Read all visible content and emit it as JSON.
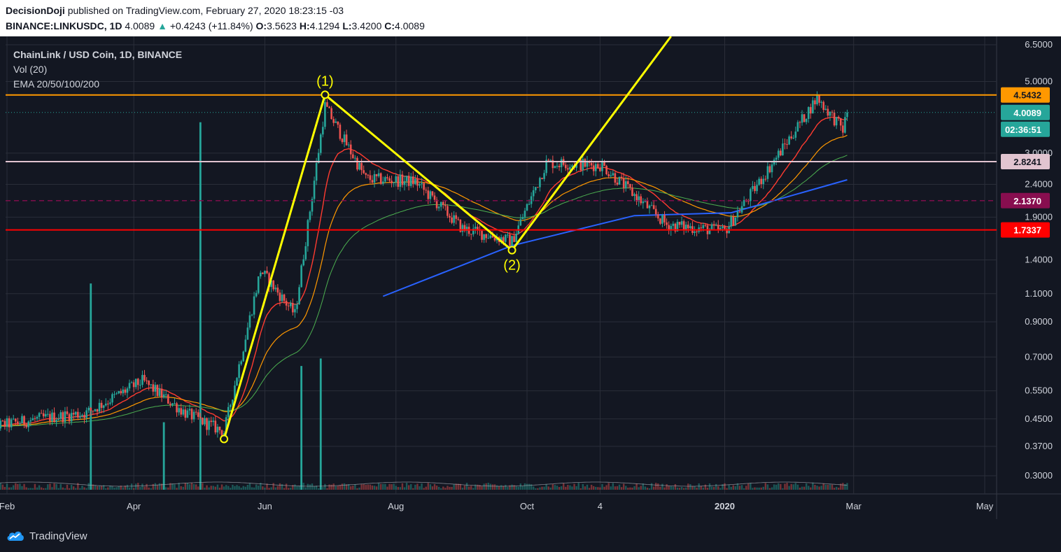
{
  "header": {
    "author": "DecisionDoji",
    "published_text": "published on TradingView.com, February 27, 2020 18:23:15 -03",
    "symbol": "BINANCE:LINKUSDC, 1D",
    "last": "4.0089",
    "change": "+0.4243 (+11.84%)",
    "o_label": "O:",
    "o_value": "3.5623",
    "h_label": "H:",
    "h_value": "4.1294",
    "l_label": "L:",
    "l_value": "3.4200",
    "c_label": "C:",
    "c_value": "4.0089"
  },
  "legend": {
    "title": "ChainLink / USD Coin, 1D, BINANCE",
    "vol": "Vol (20)",
    "ema": "EMA 20/50/100/200"
  },
  "footer": {
    "brand": "TradingView"
  },
  "colors": {
    "background": "#131722",
    "up": "#26a69a",
    "down": "#ef5350",
    "orange_line": "#ff9800",
    "red_line": "#ff0000",
    "pink_line": "#e1c4d0",
    "purple_dash": "#880e4f",
    "wave": "#ffff00",
    "ema20": "#ff3b30",
    "ema50": "#ff9800",
    "ema100": "#4caf50",
    "ema200": "#2962ff"
  },
  "chart_data": {
    "type": "candlestick",
    "scale": "log",
    "y_ticks": [
      "6.5000",
      "5.0000",
      "3.0000",
      "2.4000",
      "1.9000",
      "1.4000",
      "1.1000",
      "0.9000",
      "0.7000",
      "0.5500",
      "0.4500",
      "0.3700",
      "0.3000"
    ],
    "x_ticks": [
      "Feb",
      "Apr",
      "Jun",
      "Aug",
      "Oct",
      "4",
      "2020",
      "Mar",
      "May"
    ],
    "price_labels": [
      {
        "text": "4.5432",
        "value": 4.5432,
        "bg": "#ff9800",
        "fg": "#131722"
      },
      {
        "text": "4.0089",
        "value": 4.0089,
        "bg": "#26a69a",
        "fg": "#ffffff"
      },
      {
        "text": "02:36:51",
        "value": null,
        "bg": "#26a69a",
        "fg": "#ffffff"
      },
      {
        "text": "2.8241",
        "value": 2.8241,
        "bg": "#e1c4d0",
        "fg": "#131722"
      },
      {
        "text": "2.1370",
        "value": 2.137,
        "bg": "#880e4f",
        "fg": "#ffffff"
      },
      {
        "text": "1.7337",
        "value": 1.7337,
        "bg": "#ff0000",
        "fg": "#ffffff"
      }
    ],
    "horizontal_lines": [
      {
        "value": 4.5432,
        "color": "#ff9800",
        "style": "solid"
      },
      {
        "value": 2.8241,
        "color": "#e1c4d0",
        "style": "solid"
      },
      {
        "value": 2.137,
        "color": "#880e4f",
        "style": "dashed"
      },
      {
        "value": 1.7337,
        "color": "#ff0000",
        "style": "solid"
      },
      {
        "value": 4.0089,
        "color": "#26a69a",
        "style": "dotted"
      }
    ],
    "wave_points": [
      {
        "date": "2019-05-13",
        "price": 0.39
      },
      {
        "date": "2019-06-29",
        "price": 4.55,
        "label": "(1)"
      },
      {
        "date": "2019-09-24",
        "price": 1.5,
        "label": "(2)"
      },
      {
        "date": "2019-12-07",
        "price": 6.9
      }
    ],
    "ohlc_keypoints": [
      {
        "date": "2019-01-20",
        "price": 0.42
      },
      {
        "date": "2019-02-15",
        "price": 0.45
      },
      {
        "date": "2019-03-10",
        "price": 0.47
      },
      {
        "date": "2019-04-05",
        "price": 0.59
      },
      {
        "date": "2019-04-25",
        "price": 0.47
      },
      {
        "date": "2019-05-13",
        "price": 0.41
      },
      {
        "date": "2019-05-30",
        "price": 1.3
      },
      {
        "date": "2019-06-15",
        "price": 0.95
      },
      {
        "date": "2019-06-29",
        "price": 4.2
      },
      {
        "date": "2019-07-18",
        "price": 2.5
      },
      {
        "date": "2019-08-10",
        "price": 2.45
      },
      {
        "date": "2019-09-01",
        "price": 1.75
      },
      {
        "date": "2019-09-24",
        "price": 1.6
      },
      {
        "date": "2019-10-10",
        "price": 2.8
      },
      {
        "date": "2019-11-05",
        "price": 2.75
      },
      {
        "date": "2019-12-05",
        "price": 1.8
      },
      {
        "date": "2020-01-01",
        "price": 1.72
      },
      {
        "date": "2020-01-20",
        "price": 2.6
      },
      {
        "date": "2020-02-13",
        "price": 4.45
      },
      {
        "date": "2020-02-25",
        "price": 3.55
      },
      {
        "date": "2020-02-27",
        "price": 4.0089
      }
    ],
    "ema200_points": [
      {
        "date": "2019-07-26",
        "price": 1.08
      },
      {
        "date": "2019-09-24",
        "price": 1.55
      },
      {
        "date": "2019-11-20",
        "price": 1.92
      },
      {
        "date": "2020-01-04",
        "price": 1.96
      },
      {
        "date": "2020-02-27",
        "price": 2.48
      }
    ],
    "volume_spikes": [
      {
        "date": "2019-03-12",
        "size": 0.55
      },
      {
        "date": "2019-05-02",
        "size": 0.98
      },
      {
        "date": "2019-06-27",
        "size": 0.35
      },
      {
        "date": "2019-06-18",
        "size": 0.33
      },
      {
        "date": "2019-04-15",
        "size": 0.18
      }
    ]
  }
}
